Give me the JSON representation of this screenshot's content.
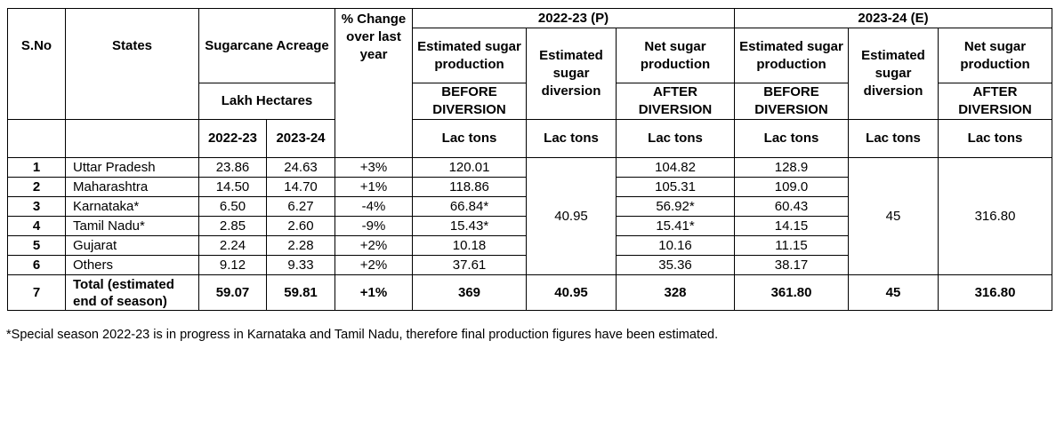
{
  "headers": {
    "sno": "S.No",
    "states": "States",
    "acreage": "Sugarcane Acreage",
    "acreage_unit": "Lakh Hectares",
    "year_a": "2022-23",
    "year_b": "2023-24",
    "change": "% Change over last year",
    "group_2022": "2022-23 (P)",
    "group_2023": "2023-24 (E)",
    "est_prod": "Estimated sugar production",
    "before_div": "BEFORE DIVERSION",
    "est_div": "Estimated sugar diversion",
    "net_prod": "Net sugar production",
    "after_div": "AFTER DIVERSION",
    "lac_tons": "Lac tons"
  },
  "rows": [
    {
      "sno": "1",
      "state": "Uttar Pradesh",
      "a22": "23.86",
      "a23": "24.63",
      "chg": "+3%",
      "p22": "120.01",
      "n22": "104.82",
      "p23": "128.9"
    },
    {
      "sno": "2",
      "state": "Maharashtra",
      "a22": "14.50",
      "a23": "14.70",
      "chg": "+1%",
      "p22": "118.86",
      "n22": "105.31",
      "p23": "109.0"
    },
    {
      "sno": "3",
      "state": "Karnataka*",
      "a22": "6.50",
      "a23": "6.27",
      "chg": "-4%",
      "p22": "66.84*",
      "n22": "56.92*",
      "p23": "60.43"
    },
    {
      "sno": "4",
      "state": "Tamil Nadu*",
      "a22": "2.85",
      "a23": "2.60",
      "chg": "-9%",
      "p22": "15.43*",
      "n22": "15.41*",
      "p23": "14.15"
    },
    {
      "sno": "5",
      "state": "Gujarat",
      "a22": "2.24",
      "a23": "2.28",
      "chg": "+2%",
      "p22": "10.18",
      "n22": "10.16",
      "p23": "11.15"
    },
    {
      "sno": "6",
      "state": "Others",
      "a22": "9.12",
      "a23": "9.33",
      "chg": "+2%",
      "p22": "37.61",
      "n22": "35.36",
      "p23": "38.17"
    }
  ],
  "merged": {
    "div_2022": "40.95",
    "div_2023": "45",
    "net_2023": "316.80"
  },
  "total": {
    "sno": "7",
    "label": "Total (estimated end of season)",
    "a22": "59.07",
    "a23": "59.81",
    "chg": "+1%",
    "p22": "369",
    "d22": "40.95",
    "n22": "328",
    "p23": "361.80",
    "d23": "45",
    "n23": "316.80"
  },
  "footnote": "*Special season 2022-23 is in progress in Karnataka and Tamil Nadu, therefore final production figures have been estimated."
}
